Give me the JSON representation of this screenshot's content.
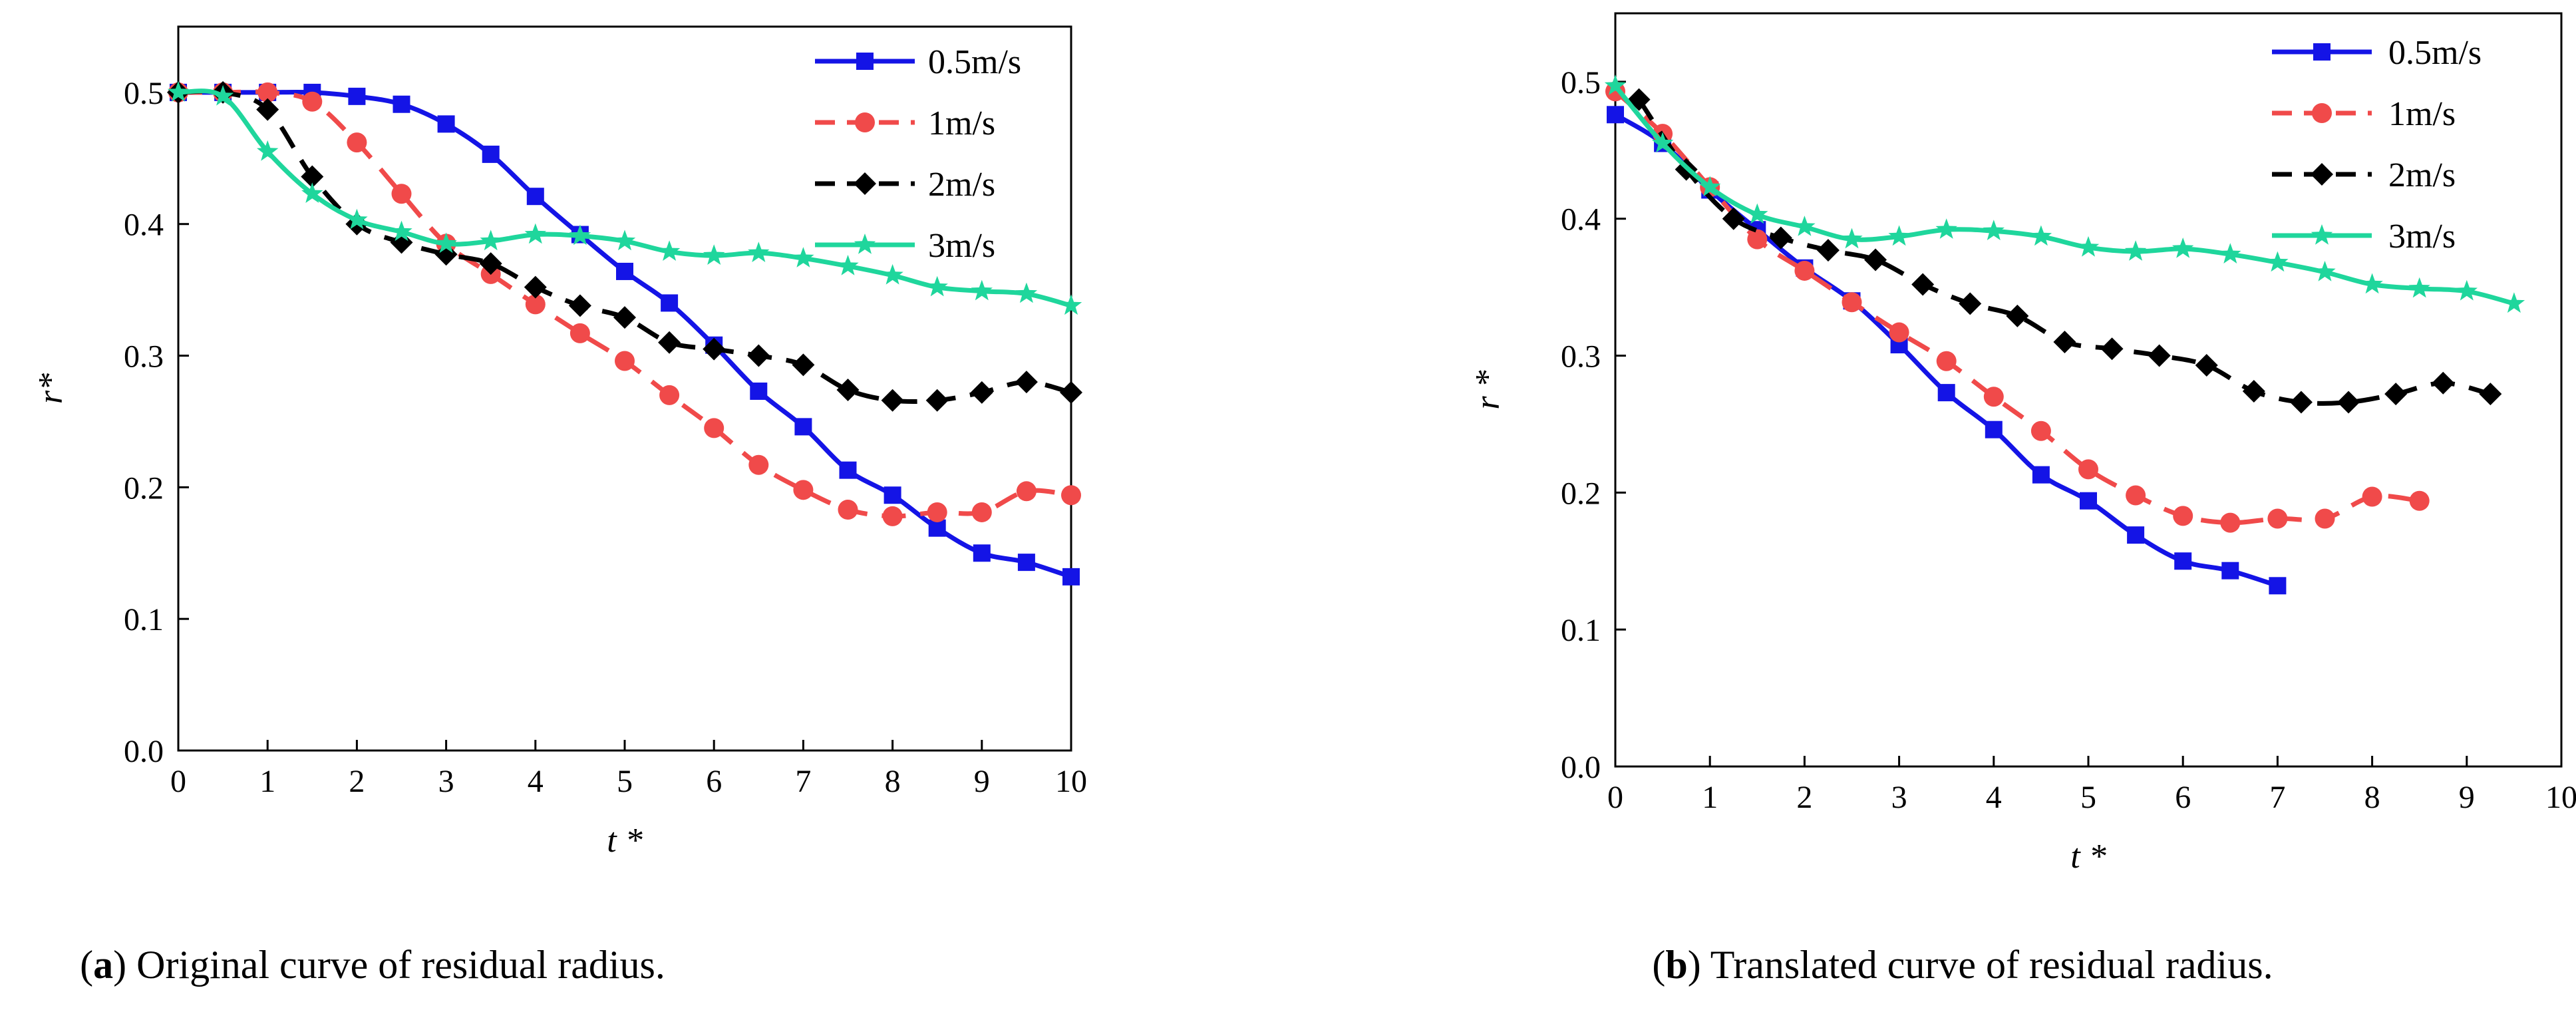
{
  "chart_data": [
    {
      "type": "line",
      "panel_tag": "a",
      "caption": "Original curve of residual radius.",
      "xlabel": "t *",
      "ylabel": "r*",
      "xlim": [
        0,
        10
      ],
      "ylim": [
        0,
        0.55
      ],
      "xticks": [
        0,
        1,
        2,
        3,
        4,
        5,
        6,
        7,
        8,
        9,
        10
      ],
      "yticks": [
        0.0,
        0.1,
        0.2,
        0.3,
        0.4,
        0.5
      ],
      "xtick_labels": [
        "0",
        "1",
        "2",
        "3",
        "4",
        "5",
        "6",
        "7",
        "8",
        "9",
        "10"
      ],
      "ytick_labels": [
        "0.0",
        "0.1",
        "0.2",
        "0.3",
        "0.4",
        "0.5"
      ],
      "legend_position": "top-right",
      "series": [
        {
          "name": "0.5m/s",
          "color": "#1414e6",
          "dash": "solid",
          "marker": "square",
          "x": [
            0,
            0.5,
            1,
            1.5,
            2,
            2.5,
            3,
            3.5,
            4,
            4.5,
            5,
            5.5,
            6,
            6.5,
            7,
            7.5,
            8,
            8.5,
            9,
            9.5,
            10
          ],
          "y": [
            0.5,
            0.5,
            0.5,
            0.5,
            0.497,
            0.491,
            0.476,
            0.453,
            0.421,
            0.392,
            0.364,
            0.34,
            0.308,
            0.273,
            0.246,
            0.213,
            0.194,
            0.169,
            0.15,
            0.143,
            0.132
          ]
        },
        {
          "name": "1m/s",
          "color": "#f04a4a",
          "dash": "dashed",
          "marker": "circle",
          "x": [
            0,
            0.5,
            1,
            1.5,
            2,
            2.5,
            3,
            3.5,
            4,
            4.5,
            5,
            5.5,
            6,
            6.5,
            7,
            7.5,
            8,
            8.5,
            9,
            9.5,
            10
          ],
          "y": [
            0.5,
            0.5,
            0.5,
            0.493,
            0.462,
            0.423,
            0.385,
            0.362,
            0.339,
            0.317,
            0.296,
            0.27,
            0.245,
            0.217,
            0.198,
            0.183,
            0.178,
            0.181,
            0.181,
            0.197,
            0.194
          ]
        },
        {
          "name": "2m/s",
          "color": "#000000",
          "dash": "dashed",
          "marker": "diamond",
          "x": [
            0,
            0.5,
            1,
            1.5,
            2,
            2.5,
            3,
            3.5,
            4,
            4.5,
            5,
            5.5,
            6,
            6.5,
            7,
            7.5,
            8,
            8.5,
            9,
            9.5,
            10
          ],
          "y": [
            0.5,
            0.5,
            0.487,
            0.436,
            0.4,
            0.386,
            0.377,
            0.37,
            0.352,
            0.338,
            0.329,
            0.31,
            0.305,
            0.3,
            0.293,
            0.274,
            0.266,
            0.266,
            0.272,
            0.28,
            0.272
          ]
        },
        {
          "name": "3m/s",
          "color": "#1fd69c",
          "dash": "solid",
          "marker": "star",
          "x": [
            0,
            0.5,
            1,
            1.5,
            2,
            2.5,
            3,
            3.5,
            4,
            4.5,
            5,
            5.5,
            6,
            6.5,
            7,
            7.5,
            8,
            8.5,
            9,
            9.5,
            10
          ],
          "y": [
            0.5,
            0.497,
            0.455,
            0.423,
            0.403,
            0.394,
            0.385,
            0.387,
            0.392,
            0.391,
            0.387,
            0.379,
            0.376,
            0.378,
            0.374,
            0.368,
            0.361,
            0.352,
            0.349,
            0.347,
            0.338
          ]
        }
      ]
    },
    {
      "type": "line",
      "panel_tag": "b",
      "caption": "Translated curve of residual radius.",
      "xlabel": "t *",
      "ylabel": "r *",
      "xlim": [
        0,
        10
      ],
      "ylim": [
        0,
        0.55
      ],
      "xticks": [
        0,
        1,
        2,
        3,
        4,
        5,
        6,
        7,
        8,
        9,
        10
      ],
      "yticks": [
        0.0,
        0.1,
        0.2,
        0.3,
        0.4,
        0.5
      ],
      "xtick_labels": [
        "0",
        "1",
        "2",
        "3",
        "4",
        "5",
        "6",
        "7",
        "8",
        "9",
        "10"
      ],
      "ytick_labels": [
        "0.0",
        "0.1",
        "0.2",
        "0.3",
        "0.4",
        "0.5"
      ],
      "legend_position": "top-right",
      "series": [
        {
          "name": "0.5m/s",
          "color": "#1414e6",
          "dash": "solid",
          "marker": "square",
          "x": [
            0,
            0.5,
            1,
            1.5,
            2,
            2.5,
            3,
            3.5,
            4,
            4.5,
            5,
            5.5,
            6,
            6.5,
            7
          ],
          "y": [
            0.476,
            0.455,
            0.421,
            0.392,
            0.364,
            0.34,
            0.308,
            0.273,
            0.246,
            0.213,
            0.194,
            0.169,
            0.15,
            0.143,
            0.132
          ]
        },
        {
          "name": "1m/s",
          "color": "#f04a4a",
          "dash": "dashed",
          "marker": "circle",
          "x": [
            0,
            0.5,
            1,
            1.5,
            2,
            2.5,
            3,
            3.5,
            4,
            4.5,
            5,
            5.5,
            6,
            6.5,
            7,
            7.5,
            8,
            8.5
          ],
          "y": [
            0.493,
            0.462,
            0.423,
            0.385,
            0.362,
            0.339,
            0.317,
            0.296,
            0.27,
            0.245,
            0.217,
            0.198,
            0.183,
            0.178,
            0.181,
            0.181,
            0.197,
            0.194
          ]
        },
        {
          "name": "2m/s",
          "color": "#000000",
          "dash": "dashed",
          "marker": "diamond",
          "x": [
            0.25,
            0.75,
            1.25,
            1.75,
            2.25,
            2.75,
            3.25,
            3.75,
            4.25,
            4.75,
            5.25,
            5.75,
            6.25,
            6.75,
            7.25,
            7.75,
            8.25,
            8.75,
            9.25
          ],
          "y": [
            0.487,
            0.436,
            0.4,
            0.386,
            0.377,
            0.37,
            0.352,
            0.338,
            0.329,
            0.31,
            0.305,
            0.3,
            0.293,
            0.274,
            0.266,
            0.266,
            0.272,
            0.28,
            0.272
          ]
        },
        {
          "name": "3m/s",
          "color": "#1fd69c",
          "dash": "solid",
          "marker": "star",
          "x": [
            0,
            0.5,
            1,
            1.5,
            2,
            2.5,
            3,
            3.5,
            4,
            4.5,
            5,
            5.5,
            6,
            6.5,
            7,
            7.5,
            8,
            8.5,
            9,
            9.5
          ],
          "y": [
            0.497,
            0.455,
            0.423,
            0.403,
            0.394,
            0.385,
            0.387,
            0.392,
            0.391,
            0.387,
            0.379,
            0.376,
            0.378,
            0.374,
            0.368,
            0.361,
            0.352,
            0.349,
            0.347,
            0.338
          ]
        }
      ]
    }
  ]
}
